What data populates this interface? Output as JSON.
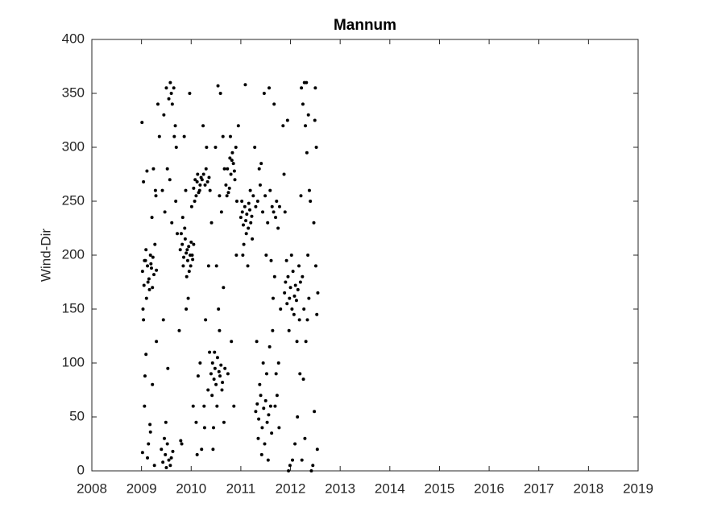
{
  "chart_data": {
    "type": "scatter",
    "title": "Mannum",
    "y_label": "Wind-Dir",
    "color": "#000000",
    "xlim": [
      2008,
      2019
    ],
    "xticks": [
      2008,
      2009,
      2010,
      2011,
      2012,
      2013,
      2014,
      2015,
      2016,
      2017,
      2018,
      2019
    ],
    "ylim": [
      0,
      400
    ],
    "yticks": [
      0,
      50,
      100,
      150,
      200,
      250,
      300,
      350,
      400
    ],
    "grid": false,
    "x": [
      2009.02,
      2009.05,
      2009.08,
      2009.1,
      2009.12,
      2009.15,
      2009.18,
      2009.2,
      2009.22,
      2009.25,
      2009.03,
      2009.06,
      2009.09,
      2009.13,
      2009.16,
      2009.19,
      2009.23,
      2009.27,
      2009.3,
      2009.04,
      2009.01,
      2009.04,
      2009.07,
      2009.11,
      2009.14,
      2009.17,
      2009.21,
      2009.24,
      2009.28,
      2009.3,
      2009.02,
      2009.06,
      2009.09,
      2009.12,
      2009.18,
      2009.22,
      2009.26,
      2009.29,
      2009.33,
      2009.36,
      2009.4,
      2009.43,
      2009.46,
      2009.48,
      2009.5,
      2009.52,
      2009.55,
      2009.58,
      2009.6,
      2009.63,
      2009.45,
      2009.5,
      2009.55,
      2009.58,
      2009.6,
      2009.62,
      2009.65,
      2009.68,
      2009.7,
      2009.52,
      2009.42,
      2009.47,
      2009.53,
      2009.57,
      2009.61,
      2009.66,
      2009.69,
      2009.72,
      2009.44,
      2009.49,
      2009.78,
      2009.82,
      2009.85,
      2009.88,
      2009.9,
      2009.93,
      2009.95,
      2009.98,
      2010.0,
      2010.03,
      2009.8,
      2009.84,
      2009.87,
      2009.92,
      2009.96,
      2010.02,
      2010.05,
      2009.83,
      2009.91,
      2009.99,
      2009.76,
      2009.79,
      2009.86,
      2009.89,
      2009.94,
      2009.97,
      2010.01,
      2010.04,
      2009.81,
      2009.9,
      2010.05,
      2010.08,
      2010.1,
      2010.12,
      2010.15,
      2010.18,
      2010.2,
      2010.07,
      2010.13,
      2010.17,
      2010.22,
      2010.25,
      2010.28,
      2010.3,
      2010.33,
      2010.36,
      2010.38,
      2010.24,
      2010.31,
      2010.35,
      2010.1,
      2010.14,
      2010.18,
      2010.21,
      2010.26,
      2010.29,
      2010.34,
      2010.37,
      2010.12,
      2010.27,
      2010.4,
      2010.43,
      2010.46,
      2010.48,
      2010.5,
      2010.53,
      2010.56,
      2010.58,
      2010.6,
      2010.63,
      2010.42,
      2010.47,
      2010.52,
      2010.57,
      2010.62,
      2010.66,
      2010.68,
      2010.45,
      2010.55,
      2010.65,
      2010.41,
      2010.49,
      2010.54,
      2010.59,
      2010.64,
      2010.51,
      2010.61,
      2010.44,
      2010.67,
      2010.57,
      2010.7,
      2010.73,
      2010.75,
      2010.78,
      2010.8,
      2010.83,
      2010.85,
      2010.88,
      2010.9,
      2010.72,
      2010.77,
      2010.82,
      2010.87,
      2010.92,
      2010.95,
      2010.74,
      2010.81,
      2010.86,
      2010.91,
      2010.79,
      2011.0,
      2011.03,
      2011.05,
      2011.08,
      2011.1,
      2011.12,
      2011.15,
      2011.18,
      2011.2,
      2011.02,
      2011.06,
      2011.11,
      2011.16,
      2011.22,
      2011.25,
      2011.04,
      2011.09,
      2011.14,
      2011.19,
      2011.23,
      2011.3,
      2011.33,
      2011.36,
      2011.4,
      2011.43,
      2011.46,
      2011.5,
      2011.53,
      2011.56,
      2011.6,
      2011.35,
      2011.42,
      2011.48,
      2011.55,
      2011.38,
      2011.45,
      2011.52,
      2011.58,
      2011.32,
      2011.62,
      2011.3,
      2011.34,
      2011.39,
      2011.44,
      2011.49,
      2011.54,
      2011.59,
      2011.63,
      2011.66,
      2011.7,
      2011.28,
      2011.37,
      2011.47,
      2011.57,
      2011.67,
      2011.72,
      2011.75,
      2011.78,
      2011.41,
      2011.51,
      2011.65,
      2011.68,
      2011.73,
      2011.76,
      2011.8,
      2011.64,
      2011.71,
      2011.77,
      2011.61,
      2011.69,
      2011.88,
      2011.9,
      2011.93,
      2011.95,
      2011.98,
      2012.0,
      2012.03,
      2012.05,
      2012.08,
      2012.1,
      2012.12,
      2012.15,
      2012.18,
      2012.2,
      2011.92,
      2011.97,
      2012.02,
      2012.07,
      2012.13,
      2012.17,
      2011.85,
      2011.89,
      2011.94,
      2011.99,
      2012.04,
      2012.09,
      2012.14,
      2012.19,
      2011.87,
      2011.96,
      2012.22,
      2012.25,
      2012.28,
      2012.3,
      2012.33,
      2012.36,
      2012.4,
      2012.45,
      2012.5,
      2012.52,
      2012.24,
      2012.27,
      2012.31,
      2012.35,
      2012.38,
      2012.48,
      2012.51,
      2012.53,
      2012.54,
      2012.26,
      2012.23,
      2012.29,
      2012.32,
      2012.37,
      2012.42,
      2012.47,
      2012.49,
      2012.55,
      2012.21,
      2012.34
    ],
    "values": [
      185,
      172,
      195,
      160,
      190,
      178,
      200,
      188,
      170,
      182,
      150,
      195,
      205,
      175,
      168,
      192,
      198,
      210,
      186,
      140,
      323,
      268,
      88,
      278,
      25,
      43,
      235,
      280,
      260,
      120,
      17,
      60,
      108,
      12,
      36,
      80,
      5,
      255,
      340,
      310,
      20,
      8,
      30,
      15,
      3,
      25,
      10,
      5,
      12,
      18,
      330,
      355,
      345,
      360,
      350,
      340,
      355,
      320,
      300,
      280,
      260,
      240,
      95,
      270,
      230,
      310,
      250,
      220,
      140,
      45,
      205,
      210,
      198,
      215,
      202,
      195,
      208,
      200,
      212,
      196,
      220,
      190,
      225,
      205,
      185,
      200,
      210,
      235,
      180,
      190,
      130,
      28,
      310,
      260,
      160,
      350,
      245,
      60,
      25,
      150,
      262,
      270,
      255,
      268,
      258,
      265,
      272,
      250,
      275,
      260,
      270,
      275,
      265,
      280,
      268,
      272,
      260,
      320,
      300,
      190,
      45,
      88,
      100,
      20,
      60,
      140,
      75,
      110,
      15,
      40,
      90,
      100,
      85,
      95,
      80,
      105,
      92,
      88,
      98,
      82,
      70,
      110,
      60,
      130,
      75,
      45,
      95,
      40,
      150,
      170,
      230,
      300,
      357,
      350,
      310,
      190,
      240,
      20,
      280,
      255,
      265,
      280,
      258,
      290,
      275,
      295,
      285,
      270,
      300,
      255,
      262,
      288,
      278,
      250,
      320,
      90,
      120,
      60,
      200,
      310,
      235,
      240,
      228,
      245,
      232,
      238,
      225,
      242,
      230,
      250,
      210,
      220,
      248,
      236,
      255,
      200,
      358,
      190,
      260,
      215,
      55,
      62,
      48,
      70,
      40,
      58,
      65,
      45,
      52,
      60,
      30,
      15,
      25,
      10,
      80,
      100,
      90,
      115,
      120,
      35,
      245,
      250,
      265,
      240,
      255,
      230,
      260,
      245,
      240,
      235,
      300,
      280,
      350,
      355,
      340,
      250,
      225,
      245,
      285,
      200,
      160,
      180,
      70,
      100,
      150,
      130,
      90,
      40,
      195,
      60,
      165,
      175,
      155,
      180,
      160,
      170,
      150,
      185,
      162,
      172,
      158,
      168,
      140,
      175,
      195,
      130,
      200,
      145,
      120,
      190,
      320,
      240,
      325,
      5,
      10,
      25,
      50,
      90,
      275,
      0,
      355,
      340,
      360,
      320,
      295,
      330,
      250,
      5,
      355,
      300,
      180,
      150,
      120,
      200,
      260,
      55,
      190,
      145,
      20,
      85,
      10,
      30,
      360,
      160,
      0,
      230,
      325,
      165,
      255,
      140
    ]
  }
}
